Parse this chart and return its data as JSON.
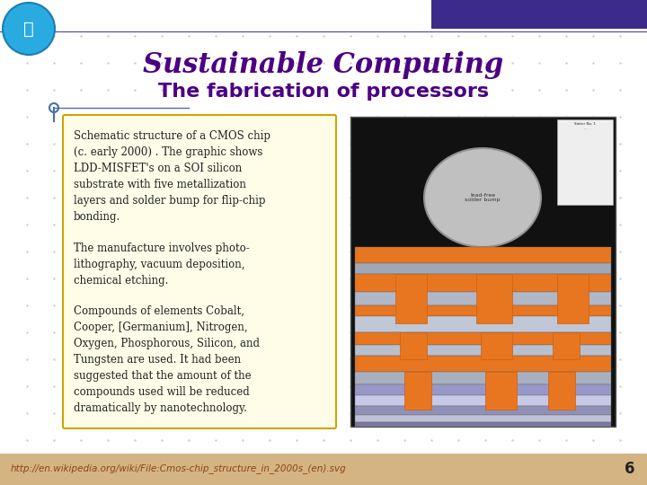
{
  "title": "Sustainable Computing",
  "subtitle": "The fabrication of processors",
  "title_color": "#4B0082",
  "subtitle_color": "#4B0082",
  "bg_color": "#F0F0F0",
  "grid_color": "#CCCCCC",
  "slide_bg": "#FFFFFF",
  "header_bar_color": "#3D2B8C",
  "header_bar2_color": "#5040A0",
  "footer_bg": "#D4B483",
  "footer_text": "http://en.wikipedia.org/wiki/File:Cmos-chip_structure_in_2000s_(en).svg",
  "footer_text_color": "#8B4513",
  "page_number": "6",
  "text_box_border": "#C8A800",
  "text_box_bg": "#FFFDE7",
  "body_text_color": "#222222",
  "left_accent_color": "#4B6EA8",
  "paragraph1": "Schematic structure of a CMOS chip\n(c. early 2000) . The graphic shows\nLDD-MISFET's on a SOI silicon\nsubstrate with five metallization\nlayers and solder bump for flip-chip\nbonding.",
  "paragraph2": "The manufacture involves photo-\nlithography, vacuum deposition,\nchemical etching.",
  "paragraph3": "Compounds of elements Cobalt,\nCooper, [Germanium], Nitrogen,\nOxygen, Phosphorous, Silicon, and\nTungsten are used. It had been\nsuggested that the amount of the\ncompounds used will be reduced\ndramatically by nanotechnology."
}
